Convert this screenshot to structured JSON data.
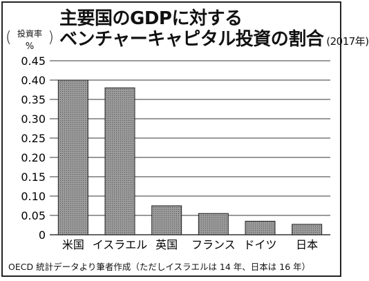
{
  "title": {
    "line1": "主要国のGDPに対する",
    "line2": "ベンチャーキャピタル投資の割合",
    "year": "(2017年)"
  },
  "unit": {
    "label": "投資率",
    "symbol": "%"
  },
  "footnote": "OECD 統計データより筆者作成（ただしイスラエルは 14 年、日本は 16 年）",
  "chart_data": {
    "type": "bar",
    "title": "主要国のGDPに対するベンチャーキャピタル投資の割合 (2017年)",
    "ylabel": "投資率 %",
    "categories": [
      "米国",
      "イスラエル",
      "英国",
      "フランス",
      "ドイツ",
      "日本"
    ],
    "values": [
      0.4,
      0.38,
      0.075,
      0.055,
      0.035,
      0.027
    ],
    "ylim": [
      0,
      0.45
    ],
    "yticks": [
      "0",
      "0.05",
      "0.10",
      "0.15",
      "0.20",
      "0.25",
      "0.30",
      "0.35",
      "0.40",
      "0.45"
    ],
    "grid": true,
    "colors": {
      "bar": "#8a8a8a",
      "bar_edge": "#222222",
      "grid": "#333333"
    }
  }
}
